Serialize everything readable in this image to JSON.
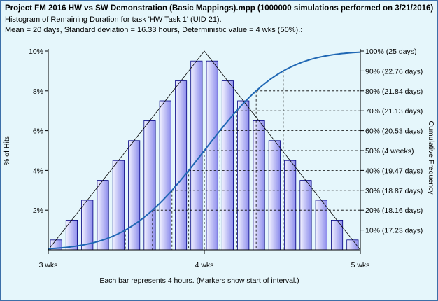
{
  "header": {
    "title": "Project FM 2016 HW vs SW Demonstration (Basic Mappings).mpp (1000000 simulations performed on 3/21/2016)",
    "subtitle": "Histogram of Remaining Duration for task 'HW Task 1' (UID 21).",
    "stats": "Mean = 20 days, Standard deviation = 16.33 hours, Deterministic value = 4 wks (50%).:"
  },
  "chart_data": {
    "type": "bar",
    "title": "Histogram of Remaining Duration for task 'HW Task 1' (UID 21).",
    "ylabel": "% of Hits",
    "y2label": "Cumulative Frequency",
    "xlabel": "Each bar represents 4 hours. (Markers show start of interval.)",
    "x_ticks": [
      "3 wks",
      "4 wks",
      "5 wks"
    ],
    "y_ticks": [
      "2%",
      "4%",
      "6%",
      "8%",
      "10%"
    ],
    "ylim": [
      0,
      10
    ],
    "categories": [
      "3 wks",
      "",
      "",
      "",
      "",
      "",
      "",
      "",
      "",
      "",
      "4 wks",
      "",
      "",
      "",
      "",
      "",
      "",
      "",
      "",
      "5 wks"
    ],
    "series": [
      {
        "values": [
          0.5,
          1.5,
          2.5,
          3.5,
          4.5,
          5.5,
          6.5,
          7.5,
          8.5,
          9.5,
          9.5,
          8.5,
          7.5,
          6.5,
          5.5,
          4.5,
          3.5,
          2.5,
          1.5,
          0.5
        ]
      }
    ],
    "reference_line": {
      "type": "triangle",
      "points": [
        [
          0,
          0
        ],
        [
          10,
          10
        ],
        [
          20,
          0
        ]
      ]
    },
    "cumulative_labels": [
      "100% (25 days)",
      "90% (22.76 days)",
      "80% (21.84 days)",
      "70% (21.13 days)",
      "60% (20.53 days)",
      "50% (4 weeks)",
      "40% (19.47 days)",
      "30% (18.87 days)",
      "20% (18.16 days)",
      "10% (17.23 days)"
    ],
    "grid": false,
    "colors": {
      "bar_fill_light": "#f2f2ff",
      "bar_fill_dark": "#8c8cec",
      "bar_stroke": "#000080",
      "cumulative_line": "#1f67b4",
      "background": "#e5f6fb",
      "frame": "#3c6fa8"
    }
  }
}
